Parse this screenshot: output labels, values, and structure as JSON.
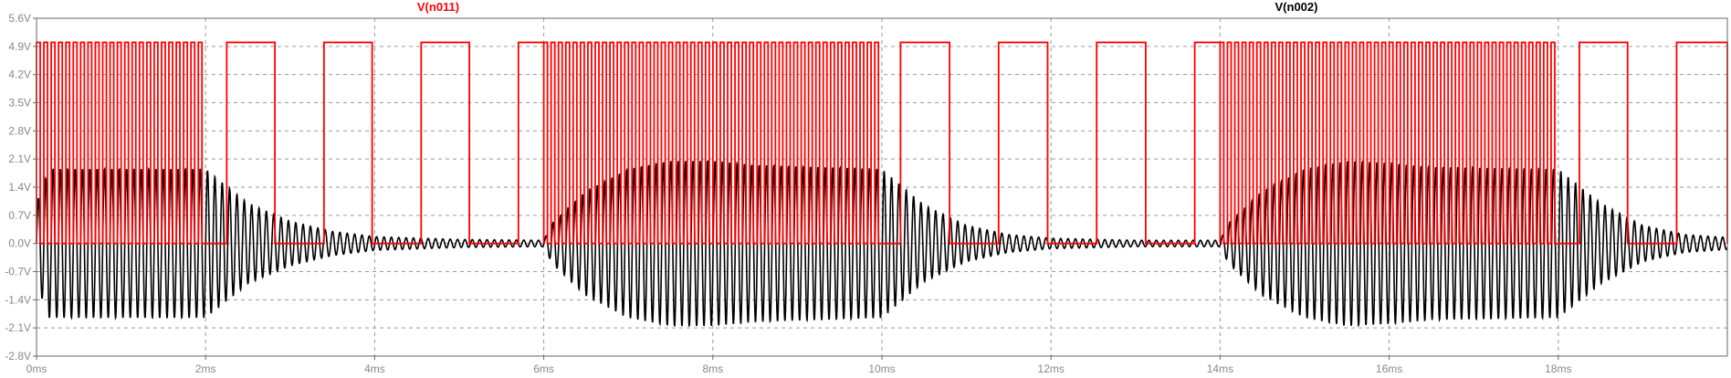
{
  "app": {
    "name": "LTspice waveform viewer"
  },
  "chart_data": {
    "type": "line",
    "title": "",
    "xlabel": "",
    "ylabel": "",
    "xlim": [
      0,
      20
    ],
    "ylim": [
      -2.8,
      5.6
    ],
    "grid": true,
    "grid_style": "dashed",
    "x_ticks": [
      0,
      2,
      4,
      6,
      8,
      10,
      12,
      14,
      16,
      18
    ],
    "x_tick_labels": [
      "0ms",
      "2ms",
      "4ms",
      "6ms",
      "8ms",
      "10ms",
      "12ms",
      "14ms",
      "16ms",
      "18ms"
    ],
    "y_ticks": [
      -2.8,
      -2.1,
      -1.4,
      -0.7,
      0.0,
      0.7,
      1.4,
      2.1,
      2.8,
      3.5,
      4.2,
      4.9,
      5.6
    ],
    "y_tick_labels": [
      "-2.8V",
      "-2.1V",
      "-1.4V",
      "-0.7V",
      "0.0V",
      "0.7V",
      "1.4V",
      "2.1V",
      "2.8V",
      "3.5V",
      "4.2V",
      "4.9V",
      "5.6V"
    ],
    "x_unit": "ms",
    "y_unit": "V",
    "series": [
      {
        "name": "V(n011)",
        "color": "#ff0000",
        "kind": "digital-pulse",
        "low": 0,
        "high": 5.0,
        "burst_intervals_ms": [
          [
            0,
            2.0
          ],
          [
            6.0,
            10.0
          ],
          [
            14.0,
            18.0
          ]
        ],
        "burst_pulse_period_ms": 0.087,
        "slow_pulses_ms": [
          [
            2.25,
            2.82
          ],
          [
            3.4,
            3.97
          ],
          [
            4.55,
            5.12
          ],
          [
            5.7,
            6.0
          ],
          [
            10.22,
            10.8
          ],
          [
            11.38,
            11.96
          ],
          [
            12.54,
            13.12
          ],
          [
            13.7,
            14.0
          ],
          [
            18.25,
            18.82
          ],
          [
            19.4,
            20.0
          ]
        ]
      },
      {
        "name": "V(n002)",
        "color": "#000000",
        "kind": "oscillation-envelope",
        "carrier_period_ms": 0.087,
        "envelope": [
          {
            "x": 0.0,
            "y": 1.0
          },
          {
            "x": 0.15,
            "y": 1.85
          },
          {
            "x": 2.0,
            "y": 1.85
          },
          {
            "x": 2.5,
            "y": 1.0
          },
          {
            "x": 3.0,
            "y": 0.55
          },
          {
            "x": 3.5,
            "y": 0.3
          },
          {
            "x": 4.0,
            "y": 0.17
          },
          {
            "x": 5.0,
            "y": 0.1
          },
          {
            "x": 6.0,
            "y": 0.08
          },
          {
            "x": 6.1,
            "y": 0.5
          },
          {
            "x": 6.5,
            "y": 1.3
          },
          {
            "x": 7.0,
            "y": 1.85
          },
          {
            "x": 7.5,
            "y": 2.05
          },
          {
            "x": 8.0,
            "y": 2.05
          },
          {
            "x": 8.5,
            "y": 1.95
          },
          {
            "x": 10.0,
            "y": 1.85
          },
          {
            "x": 10.5,
            "y": 0.95
          },
          {
            "x": 11.0,
            "y": 0.45
          },
          {
            "x": 11.5,
            "y": 0.22
          },
          {
            "x": 12.0,
            "y": 0.13
          },
          {
            "x": 13.0,
            "y": 0.08
          },
          {
            "x": 14.0,
            "y": 0.08
          },
          {
            "x": 14.1,
            "y": 0.5
          },
          {
            "x": 14.5,
            "y": 1.3
          },
          {
            "x": 15.0,
            "y": 1.85
          },
          {
            "x": 15.5,
            "y": 2.05
          },
          {
            "x": 16.0,
            "y": 2.0
          },
          {
            "x": 16.5,
            "y": 1.9
          },
          {
            "x": 18.0,
            "y": 1.85
          },
          {
            "x": 18.5,
            "y": 1.0
          },
          {
            "x": 19.0,
            "y": 0.45
          },
          {
            "x": 19.5,
            "y": 0.22
          },
          {
            "x": 20.0,
            "y": 0.15
          }
        ]
      }
    ]
  }
}
